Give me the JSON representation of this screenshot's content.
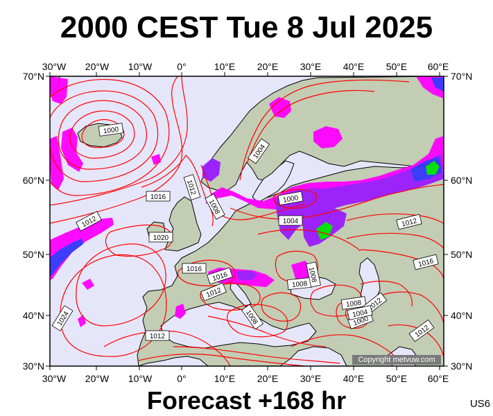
{
  "title": "2000 CEST Tue 8 Jul 2025",
  "footer": "Forecast +168 hr",
  "code": "US6",
  "copyright": "Copyright metvuw.com",
  "axes": {
    "longitude_labels": [
      "30°W",
      "20°W",
      "10°W",
      "0°",
      "10°E",
      "20°E",
      "30°E",
      "40°E",
      "50°E",
      "60°E"
    ],
    "latitude_labels": [
      "70°N",
      "60°N",
      "50°N",
      "40°N",
      "30°N"
    ]
  },
  "isobar_labels": [
    {
      "id": "iso-1000-iceland",
      "text": "1000"
    },
    {
      "id": "iso-1004-norway",
      "text": "1004"
    },
    {
      "id": "iso-1012-atlantic",
      "text": "1012"
    },
    {
      "id": "iso-1016-north-sea",
      "text": "1016"
    },
    {
      "id": "iso-1012-west",
      "text": "1012"
    },
    {
      "id": "iso-1008-denmark",
      "text": "1008"
    },
    {
      "id": "iso-1000-baltic",
      "text": "1000"
    },
    {
      "id": "iso-1004-poland",
      "text": "1004"
    },
    {
      "id": "iso-1012-russia",
      "text": "1012"
    },
    {
      "id": "iso-1020-uk",
      "text": "1020"
    },
    {
      "id": "iso-1016-france",
      "text": "1016"
    },
    {
      "id": "iso-1016-alps",
      "text": "1016"
    },
    {
      "id": "iso-1012-italy",
      "text": "1012"
    },
    {
      "id": "iso-1008-balkans",
      "text": "1008"
    },
    {
      "id": "iso-1008-ukraine",
      "text": "1008"
    },
    {
      "id": "iso-1016-caspian",
      "text": "1016"
    },
    {
      "id": "iso-1008-adriatic",
      "text": "1008"
    },
    {
      "id": "iso-1008-turkey",
      "text": "1008"
    },
    {
      "id": "iso-1012-caucasus",
      "text": "1012"
    },
    {
      "id": "iso-1000-iraq",
      "text": "1000"
    },
    {
      "id": "iso-1004-iraq",
      "text": "1004"
    },
    {
      "id": "iso-1012-iran",
      "text": "1012"
    },
    {
      "id": "iso-1024-azores",
      "text": "1024"
    },
    {
      "id": "iso-1012-morocco",
      "text": "1012"
    }
  ],
  "colors": {
    "ocean": "#e6e6fa",
    "land": "#c2cdb4",
    "isobar": "#ff0000",
    "precip_light": "#ff00ff",
    "precip_medium": "#9a1bff",
    "precip_heavy": "#3535ff",
    "precip_extreme": "#00e000"
  }
}
